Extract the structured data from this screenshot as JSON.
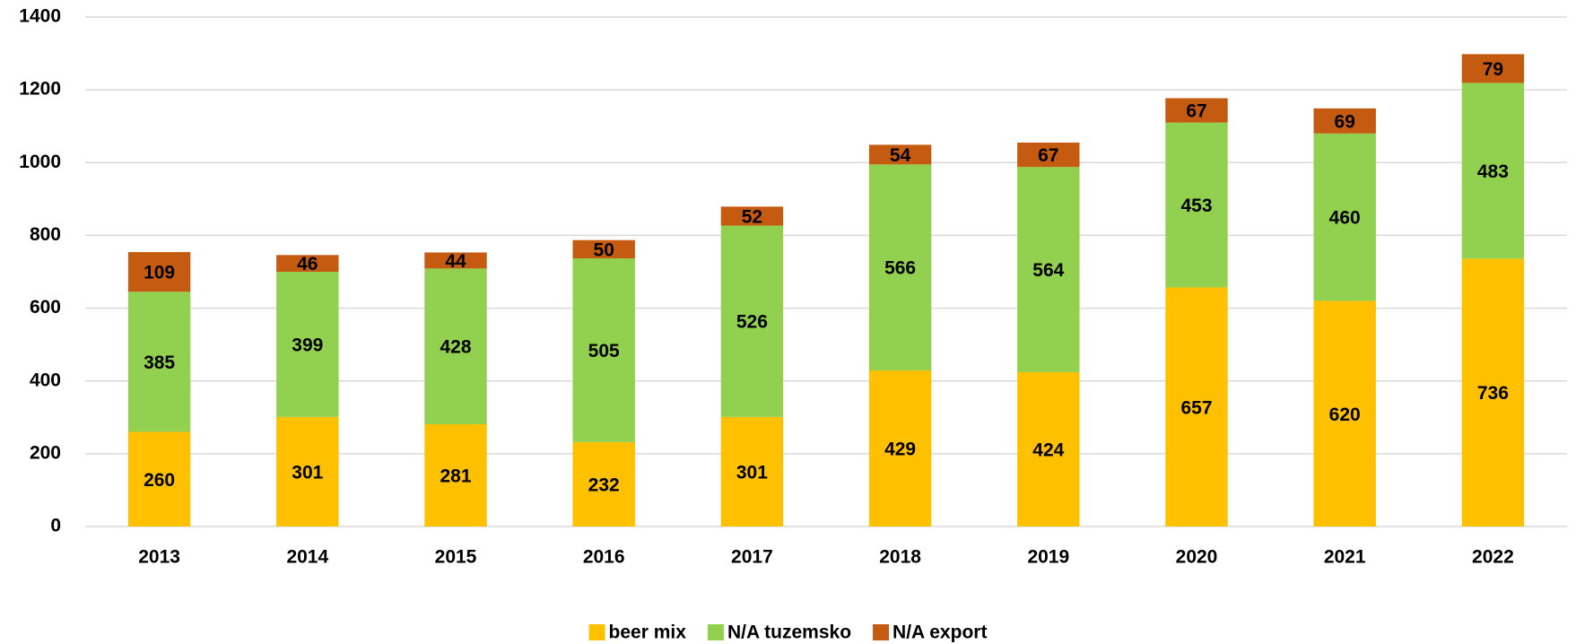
{
  "chart_data": {
    "type": "stacked_bar",
    "categories": [
      "2013",
      "2014",
      "2015",
      "2016",
      "2017",
      "2018",
      "2019",
      "2020",
      "2021",
      "2022"
    ],
    "series": [
      {
        "name": "beer mix",
        "color": "#ffc000",
        "values": [
          260,
          301,
          281,
          232,
          301,
          429,
          424,
          657,
          620,
          736
        ]
      },
      {
        "name": "N/A tuzemsko",
        "color": "#92d050",
        "values": [
          385,
          399,
          428,
          505,
          526,
          566,
          564,
          453,
          460,
          483
        ]
      },
      {
        "name": "N/A export",
        "color": "#c55a11",
        "values": [
          109,
          46,
          44,
          50,
          52,
          54,
          67,
          67,
          69,
          79
        ]
      }
    ],
    "ylim": [
      0,
      1400
    ],
    "yticks": [
      0,
      200,
      400,
      600,
      800,
      1000,
      1200,
      1400
    ],
    "grid": true,
    "legend": "bottom"
  }
}
